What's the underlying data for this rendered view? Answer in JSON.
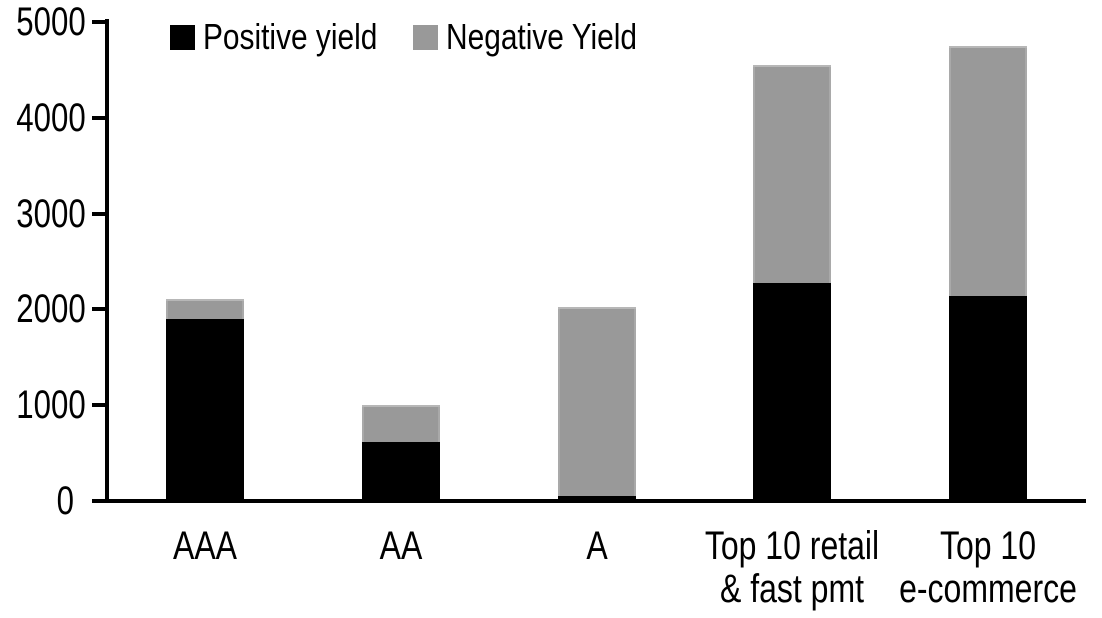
{
  "chart_data": {
    "type": "bar",
    "stacked": true,
    "title": "",
    "xlabel": "",
    "ylabel": "",
    "categories": [
      "AAA",
      "AA",
      "A",
      "Top 10 retail\n& fast pmt",
      "Top 10\ne-commerce"
    ],
    "series": [
      {
        "name": "Positive yield",
        "color": "#000000",
        "values": [
          1900,
          620,
          50,
          2280,
          2140
        ]
      },
      {
        "name": "Negative Yield",
        "color": "#999999",
        "values": [
          210,
          380,
          1980,
          2270,
          2610
        ]
      }
    ],
    "totals": [
      2110,
      1000,
      2030,
      4550,
      4750
    ],
    "ylim": [
      0,
      5000
    ],
    "yticks": [
      0,
      1000,
      2000,
      3000,
      4000,
      5000
    ],
    "grid": false,
    "legend_position": "top"
  }
}
